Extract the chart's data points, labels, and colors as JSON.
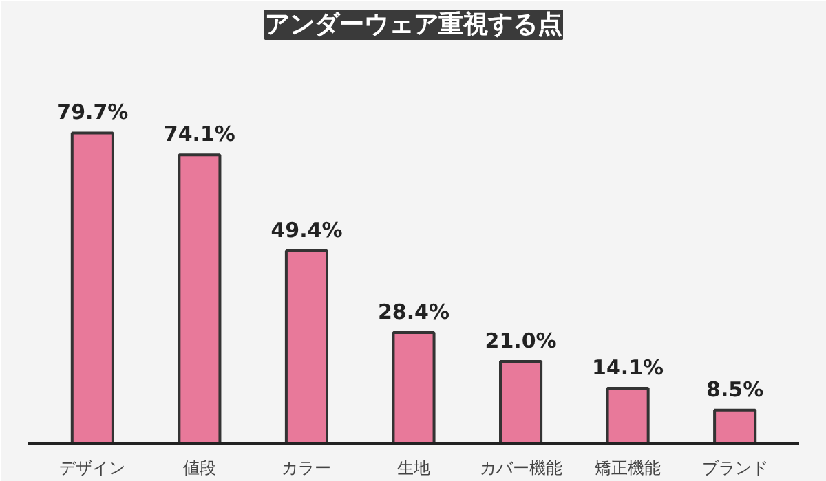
{
  "chart_data": {
    "type": "bar",
    "title": "アンダーウェア重視する点",
    "categories": [
      "デザイン",
      "値段",
      "カラー",
      "生地",
      "カバー機能",
      "矯正機能",
      "ブランド"
    ],
    "values": [
      79.7,
      74.1,
      49.4,
      28.4,
      21.0,
      14.1,
      8.5
    ],
    "value_labels": [
      "79.7%",
      "74.1%",
      "49.4%",
      "28.4%",
      "21.0%",
      "14.1%",
      "8.5%"
    ],
    "color": "#e8799a",
    "grid": false
  }
}
